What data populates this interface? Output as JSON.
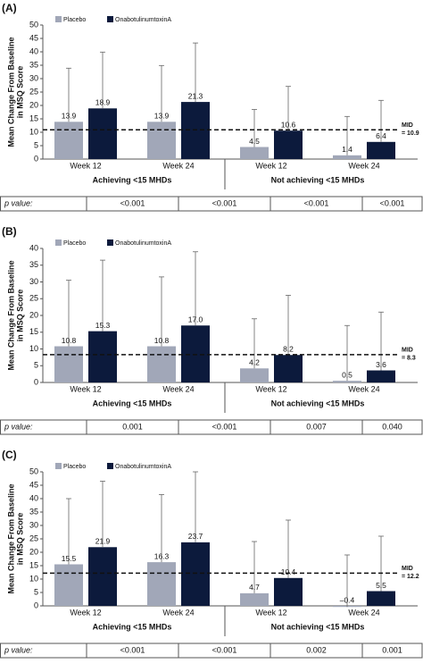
{
  "chart_data": [
    {
      "type": "bar",
      "panel_label": "(A)",
      "y_label": [
        "Mean Change From Baseline",
        "in MSQ Score"
      ],
      "categories": [
        "Week 12",
        "Week 24",
        "Week 12",
        "Week 24"
      ],
      "group_labels": [
        "Achieving <15 MHDs",
        "Not achieving <15 MHDs"
      ],
      "series": [
        {
          "name": "Placebo",
          "color": "#a1a7b8",
          "values": [
            13.9,
            13.9,
            4.5,
            1.4
          ],
          "errors": [
            20,
            21,
            14,
            14.5
          ]
        },
        {
          "name": "OnabotulinumtoxinA",
          "color": "#0c1a3c",
          "values": [
            18.9,
            21.3,
            10.6,
            6.4
          ],
          "errors": [
            21,
            22,
            16.5,
            15.5
          ]
        }
      ],
      "reference_line": {
        "value": 10.9,
        "label": "MID",
        "value_label": "= 10.9"
      },
      "ylim": [
        0,
        50
      ],
      "yticks": [
        0,
        5,
        10,
        15,
        20,
        25,
        30,
        35,
        40,
        45,
        50
      ],
      "grid": false,
      "p_value_label": "p value:",
      "p_values": [
        "<0.001",
        "<0.001",
        "<0.001",
        "<0.001"
      ]
    },
    {
      "type": "bar",
      "panel_label": "(B)",
      "y_label": [
        "Mean Change From Baseline",
        "in MSQ Score"
      ],
      "categories": [
        "Week 12",
        "Week 24",
        "Week 12",
        "Week 24"
      ],
      "group_labels": [
        "Achieving <15 MHDs",
        "Not achieving <15 MHDs"
      ],
      "series": [
        {
          "name": "Placebo",
          "color": "#a1a7b8",
          "values": [
            10.8,
            10.8,
            4.2,
            0.5
          ],
          "errors": [
            19.7,
            20.7,
            14.8,
            16.5
          ]
        },
        {
          "name": "OnabotulinumtoxinA",
          "color": "#0c1a3c",
          "values": [
            15.3,
            17.0,
            8.2,
            3.6
          ],
          "errors": [
            21.2,
            22,
            17.8,
            17.4
          ]
        }
      ],
      "value_labels": {
        "1": {
          "1": "17.0"
        }
      },
      "reference_line": {
        "value": 8.3,
        "label": "MID",
        "value_label": "= 8.3"
      },
      "ylim": [
        0,
        40
      ],
      "yticks": [
        0,
        5,
        10,
        15,
        20,
        25,
        30,
        35,
        40
      ],
      "grid": false,
      "p_value_label": "p value:",
      "p_values": [
        "0.001",
        "<0.001",
        "0.007",
        "0.040"
      ]
    },
    {
      "type": "bar",
      "panel_label": "(C)",
      "y_label": [
        "Mean Change From Baseline",
        "in MSQ Score"
      ],
      "categories": [
        "Week 12",
        "Week 24",
        "Week 12",
        "Week 24"
      ],
      "group_labels": [
        "Achieving <15 MHDs",
        "Not achieving <15 MHDs"
      ],
      "series": [
        {
          "name": "Placebo",
          "color": "#a1a7b8",
          "values": [
            15.5,
            16.3,
            4.7,
            -0.4
          ],
          "errors": [
            24.5,
            25.2,
            19.3,
            19.4
          ]
        },
        {
          "name": "OnabotulinumtoxinA",
          "color": "#0c1a3c",
          "values": [
            21.9,
            23.7,
            10.4,
            5.5
          ],
          "errors": [
            24.6,
            26.3,
            21.6,
            20.5
          ]
        }
      ],
      "value_labels": {
        "0": {
          "3": "–0.4"
        }
      },
      "reference_line": {
        "value": 12.2,
        "label": "MID",
        "value_label": "= 12.2"
      },
      "ylim": [
        0,
        50
      ],
      "yticks": [
        0,
        5,
        10,
        15,
        20,
        25,
        30,
        35,
        40,
        45,
        50
      ],
      "grid": false,
      "p_value_label": "p value:",
      "p_values": [
        "<0.001",
        "<0.001",
        "0.002",
        "0.001"
      ]
    }
  ]
}
